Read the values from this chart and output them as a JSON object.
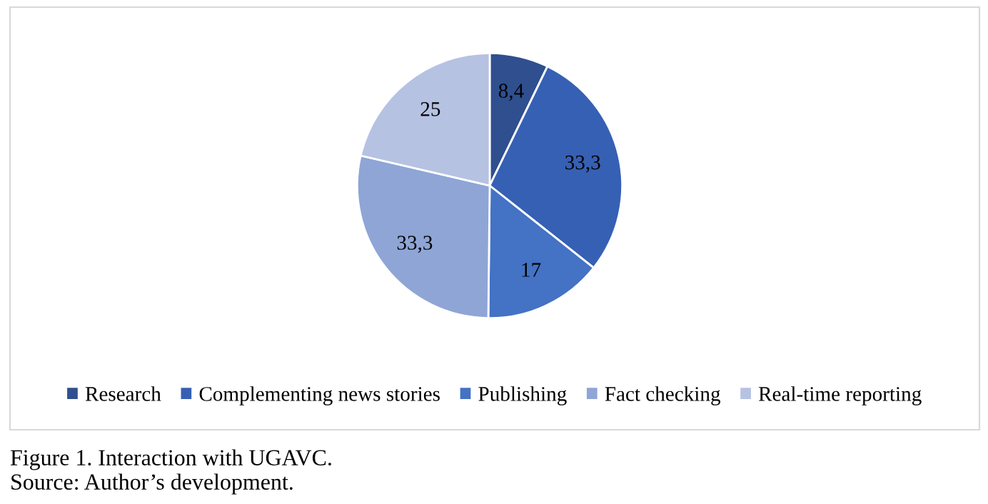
{
  "chart_data": {
    "type": "pie",
    "title": "Figure 1. Interaction with UGAVC.",
    "categories": [
      "Research",
      "Complementing news stories",
      "Publishing",
      "Fact checking",
      "Real-time reporting"
    ],
    "values": [
      8.4,
      33.3,
      17,
      33.3,
      25
    ],
    "value_labels": [
      "8,4",
      "33,3",
      "17",
      "33,3",
      "25"
    ],
    "colors": [
      "#2f4f8f",
      "#3660b4",
      "#4472c4",
      "#8ea5d6",
      "#b6c2e2"
    ],
    "legend": "bottom",
    "annotations": [
      "Source: Author’s development."
    ]
  }
}
